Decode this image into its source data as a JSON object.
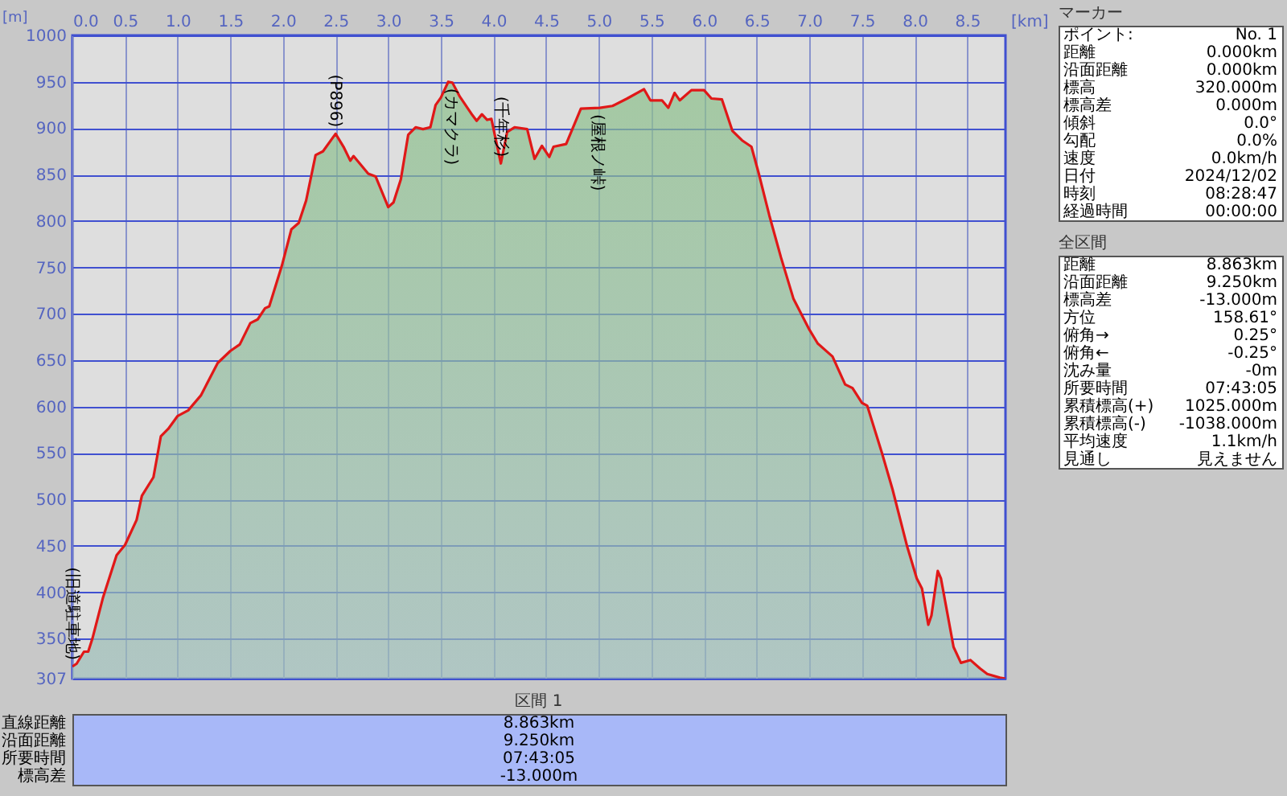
{
  "chart_data": [
    {
      "type": "area",
      "xlabel": "[km]",
      "ylabel": "[m]",
      "color": "#e01818",
      "grid": true,
      "x": [
        0,
        0.04,
        0.11,
        0.15,
        0.19,
        0.29,
        0.42,
        0.5,
        0.61,
        0.66,
        0.77,
        0.84,
        0.91,
        1.0,
        1.1,
        1.22,
        1.38,
        1.5,
        1.59,
        1.69,
        1.76,
        1.83,
        1.87,
        1.99,
        2.08,
        2.15,
        2.22,
        2.31,
        2.38,
        2.5,
        2.58,
        2.64,
        2.67,
        2.81,
        2.88,
        3.0,
        3.05,
        3.12,
        3.19,
        3.26,
        3.33,
        3.4,
        3.45,
        3.5,
        3.57,
        3.61,
        3.68,
        3.8,
        3.84,
        3.89,
        3.94,
        3.98,
        4.07,
        4.13,
        4.2,
        4.32,
        4.39,
        4.46,
        4.53,
        4.57,
        4.69,
        4.83,
        5.01,
        5.13,
        5.27,
        5.43,
        5.49,
        5.6,
        5.66,
        5.72,
        5.77,
        5.88,
        6.0,
        6.07,
        6.17,
        6.27,
        6.36,
        6.45,
        6.52,
        6.62,
        6.73,
        6.85,
        7.0,
        7.08,
        7.22,
        7.34,
        7.41,
        7.5,
        7.55,
        7.69,
        7.79,
        7.93,
        8.02,
        8.07,
        8.13,
        8.16,
        8.22,
        8.25,
        8.37,
        8.44,
        8.53,
        8.62,
        8.69,
        8.81,
        8.863
      ],
      "values": [
        320,
        323,
        336,
        336,
        350,
        394,
        440,
        451,
        478,
        504,
        524,
        568,
        576,
        590,
        596,
        612,
        647,
        660,
        667,
        690,
        694,
        706,
        708,
        752,
        791,
        798,
        822,
        871,
        875,
        894,
        879,
        865,
        870,
        851,
        848,
        815,
        820,
        845,
        893,
        901,
        899,
        901,
        925,
        933,
        950,
        949,
        934,
        914,
        908,
        915,
        909,
        910,
        862,
        896,
        901,
        899,
        867,
        881,
        869,
        880,
        883,
        921,
        922,
        924,
        932,
        942,
        930,
        930,
        922,
        938,
        930,
        941,
        941,
        932,
        931,
        897,
        887,
        880,
        851,
        806,
        761,
        716,
        683,
        668,
        654,
        624,
        620,
        604,
        601,
        550,
        511,
        449,
        415,
        404,
        365,
        375,
        423,
        415,
        341,
        324,
        327,
        318,
        312,
        308,
        307
      ],
      "xlim": [
        0,
        8.863
      ],
      "ylim": [
        307,
        1000
      ],
      "xticks": [
        {
          "value": 0,
          "label": "0.0"
        },
        {
          "value": 0.5,
          "label": "0.5"
        },
        {
          "value": 1,
          "label": "1.0"
        },
        {
          "value": 1.5,
          "label": "1.5"
        },
        {
          "value": 2,
          "label": "2.0"
        },
        {
          "value": 2.5,
          "label": "2.5"
        },
        {
          "value": 3,
          "label": "3.0"
        },
        {
          "value": 3.5,
          "label": "3.5"
        },
        {
          "value": 4,
          "label": "4.0"
        },
        {
          "value": 4.5,
          "label": "4.5"
        },
        {
          "value": 5,
          "label": "5.0"
        },
        {
          "value": 5.5,
          "label": "5.5"
        },
        {
          "value": 6,
          "label": "6.0"
        },
        {
          "value": 6.5,
          "label": "6.5"
        },
        {
          "value": 7,
          "label": "7.0"
        },
        {
          "value": 7.5,
          "label": "7.5"
        },
        {
          "value": 8,
          "label": "8.0"
        },
        {
          "value": 8.5,
          "label": "8.5"
        }
      ],
      "yticks": [
        307,
        350,
        400,
        450,
        500,
        550,
        600,
        650,
        700,
        750,
        800,
        850,
        900,
        950,
        1000
      ],
      "annotations": [
        {
          "text": "(旧道駐車地)",
          "x": 0,
          "y": 320
        },
        {
          "text": "(P896)",
          "x": 2.5,
          "y": 894
        },
        {
          "text": "(カマクラ)",
          "x": 3.6,
          "y": 950
        },
        {
          "text": "(千年杉)",
          "x": 4.07,
          "y": 862
        },
        {
          "text": "(屋根ノ峠)",
          "x": 4.99,
          "y": 922
        }
      ]
    },
    {
      "type": "other",
      "title": "区間 1",
      "annotations": [
        "直線距離",
        "8.863km",
        "沿面距離",
        "9.250km",
        "所要時間",
        "07:43:05",
        "標高差",
        "-13.000m"
      ]
    },
    {
      "type": "other",
      "title": "マーカー",
      "annotations": [
        "ポイント:",
        "No. 1",
        "距離",
        "0.000km",
        "沿面距離",
        "0.000km",
        "標高",
        "320.000m",
        "標高差",
        "0.000m",
        "傾斜",
        "0.0°",
        "勾配",
        "0.0%",
        "速度",
        "0.0km/h",
        "日付",
        "2024/12/02",
        "時刻",
        "08:28:47",
        "経過時間",
        "00:00:00"
      ]
    },
    {
      "type": "other",
      "title": "全区間",
      "annotations": [
        "距離",
        "8.863km",
        "沿面距離",
        "9.250km",
        "標高差",
        "-13.000m",
        "方位",
        "158.61°",
        "俯角→",
        "0.25°",
        "俯角←",
        "-0.25°",
        "沈み量",
        "-0m",
        "所要時間",
        "07:43:05",
        "累積標高(+)",
        "1025.000m",
        "累積標高(-)",
        "-1038.000m",
        "平均速度",
        "1.1km/h",
        "見通し",
        "見えません"
      ]
    }
  ]
}
